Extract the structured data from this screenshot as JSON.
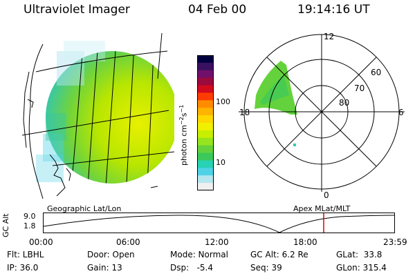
{
  "header": {
    "instrument": "Ultraviolet Imager",
    "date": "04 Feb 00",
    "time": "19:14:16 UT"
  },
  "colorbar": {
    "unit_label": "photon cm",
    "unit_sup1": "−2",
    "unit_mid": "s",
    "unit_sup2": "−1",
    "ticks": [
      "100",
      "10"
    ],
    "colors": [
      "#000040",
      "#3a1060",
      "#70106a",
      "#9b0a3c",
      "#d20a1e",
      "#ff3c00",
      "#ff8c00",
      "#ffb400",
      "#ffd800",
      "#f0f000",
      "#c8ee00",
      "#96e41e",
      "#64d23c",
      "#3cc85a",
      "#28d2b4",
      "#50d2e6",
      "#b4e6f0",
      "#f0f0f0"
    ]
  },
  "geo_panel": {
    "label": "Geographic Lat/Lon"
  },
  "polar_panel": {
    "label": "Apex MLat/MLT",
    "mlt_labels": {
      "top": "12",
      "left": "18",
      "right": "6",
      "bottom": "0"
    },
    "lat_labels": [
      "60",
      "70",
      "80"
    ]
  },
  "gc_plot": {
    "axis_label": "GC Alt",
    "y_ticks": [
      "9.0",
      "1.8"
    ],
    "x_ticks": [
      "00:00",
      "06:00",
      "12:00",
      "18:00",
      "23:59"
    ],
    "marker_color": "#e00000"
  },
  "footer": {
    "flt": "Flt: LBHL",
    "ip": "IP: 36.0",
    "door": "Door: Open",
    "gain": "Gain: 13",
    "mode": "Mode: Normal",
    "dsp": "Dsp:   -5.4",
    "gcalt": "GC Alt: 6.2 Re",
    "seq": "Seq: 39",
    "glat": "GLat:  33.8",
    "glon": "GLon: 315.4"
  }
}
